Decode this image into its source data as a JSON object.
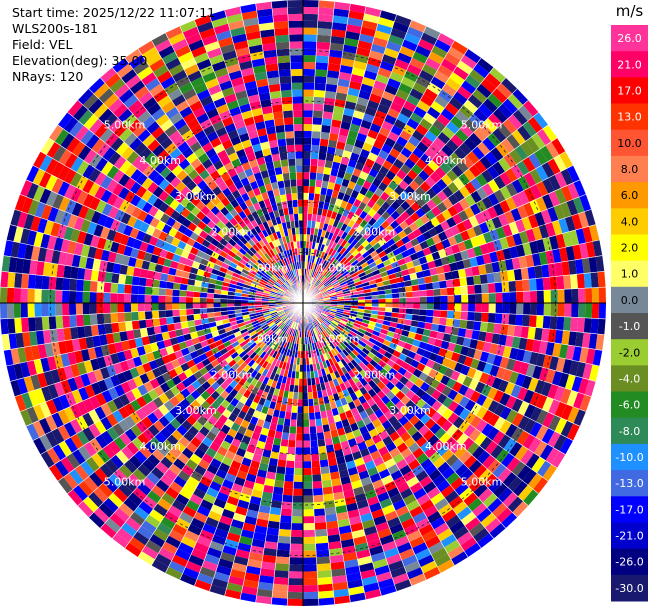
{
  "info": {
    "start_time": "Start time: 2025/12/22 11:07:11",
    "instrument": "WLS200s-181",
    "field": "Field: VEL",
    "elevation": "Elevation(deg): 35.00",
    "nrays": "NRays: 120"
  },
  "colorbar": {
    "unit": "m/s",
    "levels": [
      {
        "label": "26.0",
        "color": "#ff3399"
      },
      {
        "label": "21.0",
        "color": "#ff0066"
      },
      {
        "label": "17.0",
        "color": "#ff0000"
      },
      {
        "label": "13.0",
        "color": "#ff3300"
      },
      {
        "label": "10.0",
        "color": "#ff5533"
      },
      {
        "label": "8.0",
        "color": "#ff7f50"
      },
      {
        "label": "6.0",
        "color": "#ff9900"
      },
      {
        "label": "4.0",
        "color": "#ffcc00"
      },
      {
        "label": "2.0",
        "color": "#ffff00"
      },
      {
        "label": "1.0",
        "color": "#ffff66"
      },
      {
        "label": "0.0",
        "color": "#778899"
      },
      {
        "label": "-1.0",
        "color": "#555555"
      },
      {
        "label": "-2.0",
        "color": "#9acd32"
      },
      {
        "label": "-4.0",
        "color": "#6b8e23"
      },
      {
        "label": "-6.0",
        "color": "#228b22"
      },
      {
        "label": "-8.0",
        "color": "#2e8b57"
      },
      {
        "label": "-10.0",
        "color": "#1e90ff"
      },
      {
        "label": "-13.0",
        "color": "#4169e1"
      },
      {
        "label": "-17.0",
        "color": "#0000ff"
      },
      {
        "label": "-21.0",
        "color": "#0000cd"
      },
      {
        "label": "-26.0",
        "color": "#000080"
      },
      {
        "label": "-30.0",
        "color": "#191970"
      }
    ]
  },
  "chart_data": {
    "type": "heatmap",
    "projection": "polar",
    "field": "VEL",
    "nrays": 120,
    "range_km": [
      0,
      6
    ],
    "range_rings_km": [
      1,
      2,
      3,
      4,
      5
    ],
    "ring_labels": [
      "1.00km",
      "2.00km",
      "3.00km",
      "4.00km",
      "5.00km"
    ],
    "grid": true,
    "value_range": [
      -30,
      26
    ],
    "description_values_note": "",
    "series": []
  }
}
